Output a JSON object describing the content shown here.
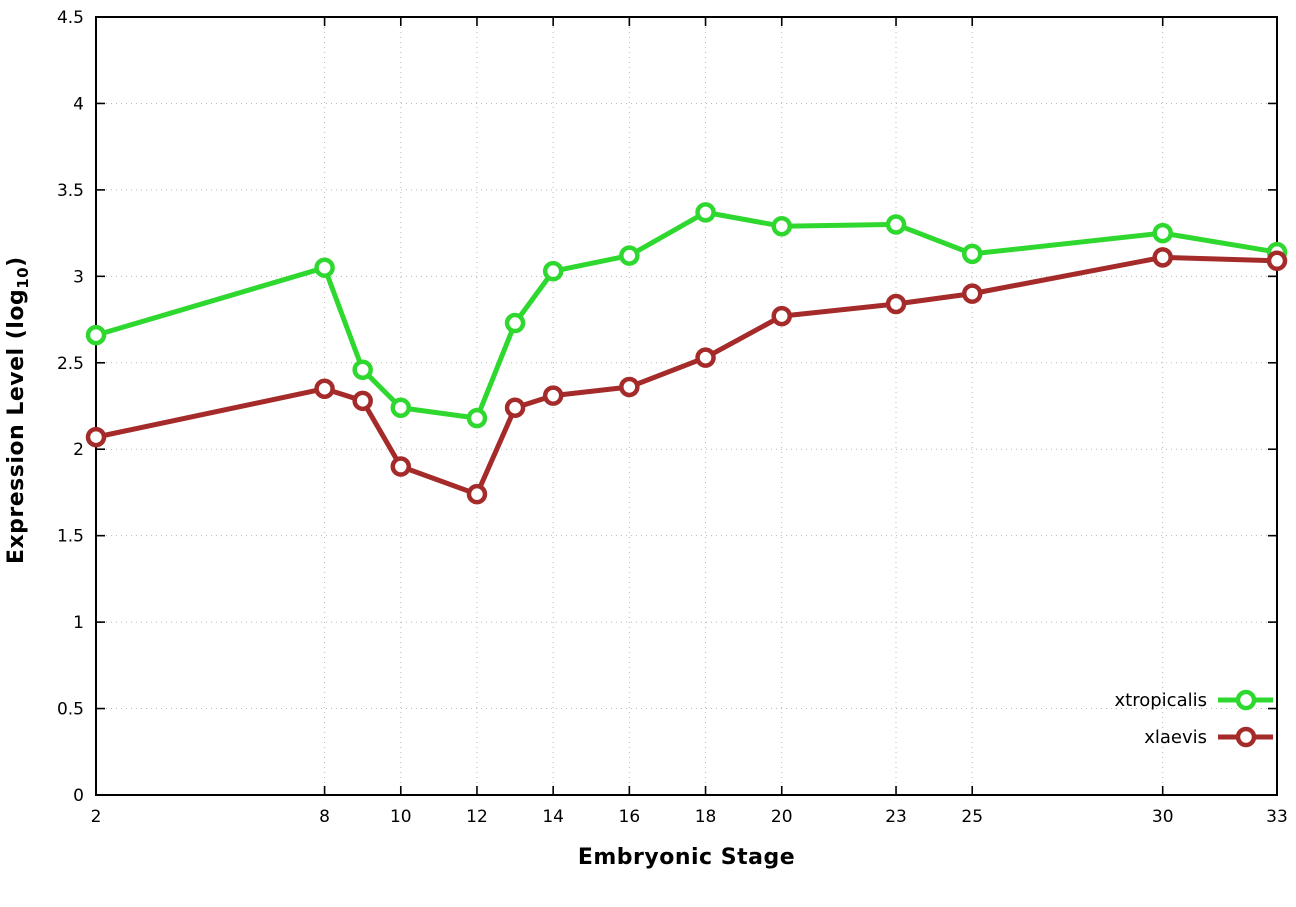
{
  "chart_data": {
    "type": "line",
    "title": "",
    "xlabel": "Embryonic Stage",
    "ylabel": "Expression Level (log10)",
    "ylabel_parts": {
      "prefix": "Expression Level (log",
      "sub": "10",
      "suffix": ")"
    },
    "xlim": [
      2,
      33
    ],
    "ylim": [
      0,
      4.5
    ],
    "x_ticks": [
      2,
      8,
      10,
      12,
      14,
      16,
      18,
      20,
      23,
      25,
      30,
      33
    ],
    "y_ticks": [
      0,
      0.5,
      1,
      1.5,
      2,
      2.5,
      3,
      3.5,
      4,
      4.5
    ],
    "grid": true,
    "legend_position": "bottom-right",
    "x": [
      2,
      8,
      9,
      10,
      12,
      13,
      14,
      16,
      18,
      20,
      23,
      25,
      30,
      33
    ],
    "series": [
      {
        "name": "xtropicalis",
        "color": "#2fd82f",
        "values": [
          2.66,
          3.05,
          2.46,
          2.24,
          2.18,
          2.73,
          3.03,
          3.12,
          3.37,
          3.29,
          3.3,
          3.13,
          3.25,
          3.14
        ]
      },
      {
        "name": "xlaevis",
        "color": "#a52a2a",
        "values": [
          2.07,
          2.35,
          2.28,
          1.9,
          1.74,
          2.24,
          2.31,
          2.36,
          2.53,
          2.77,
          2.84,
          2.9,
          3.11,
          3.09
        ]
      }
    ],
    "style": {
      "grid_color": "#b8b8b8",
      "axis_color": "#000000",
      "marker_fill": "#ffffff"
    }
  }
}
